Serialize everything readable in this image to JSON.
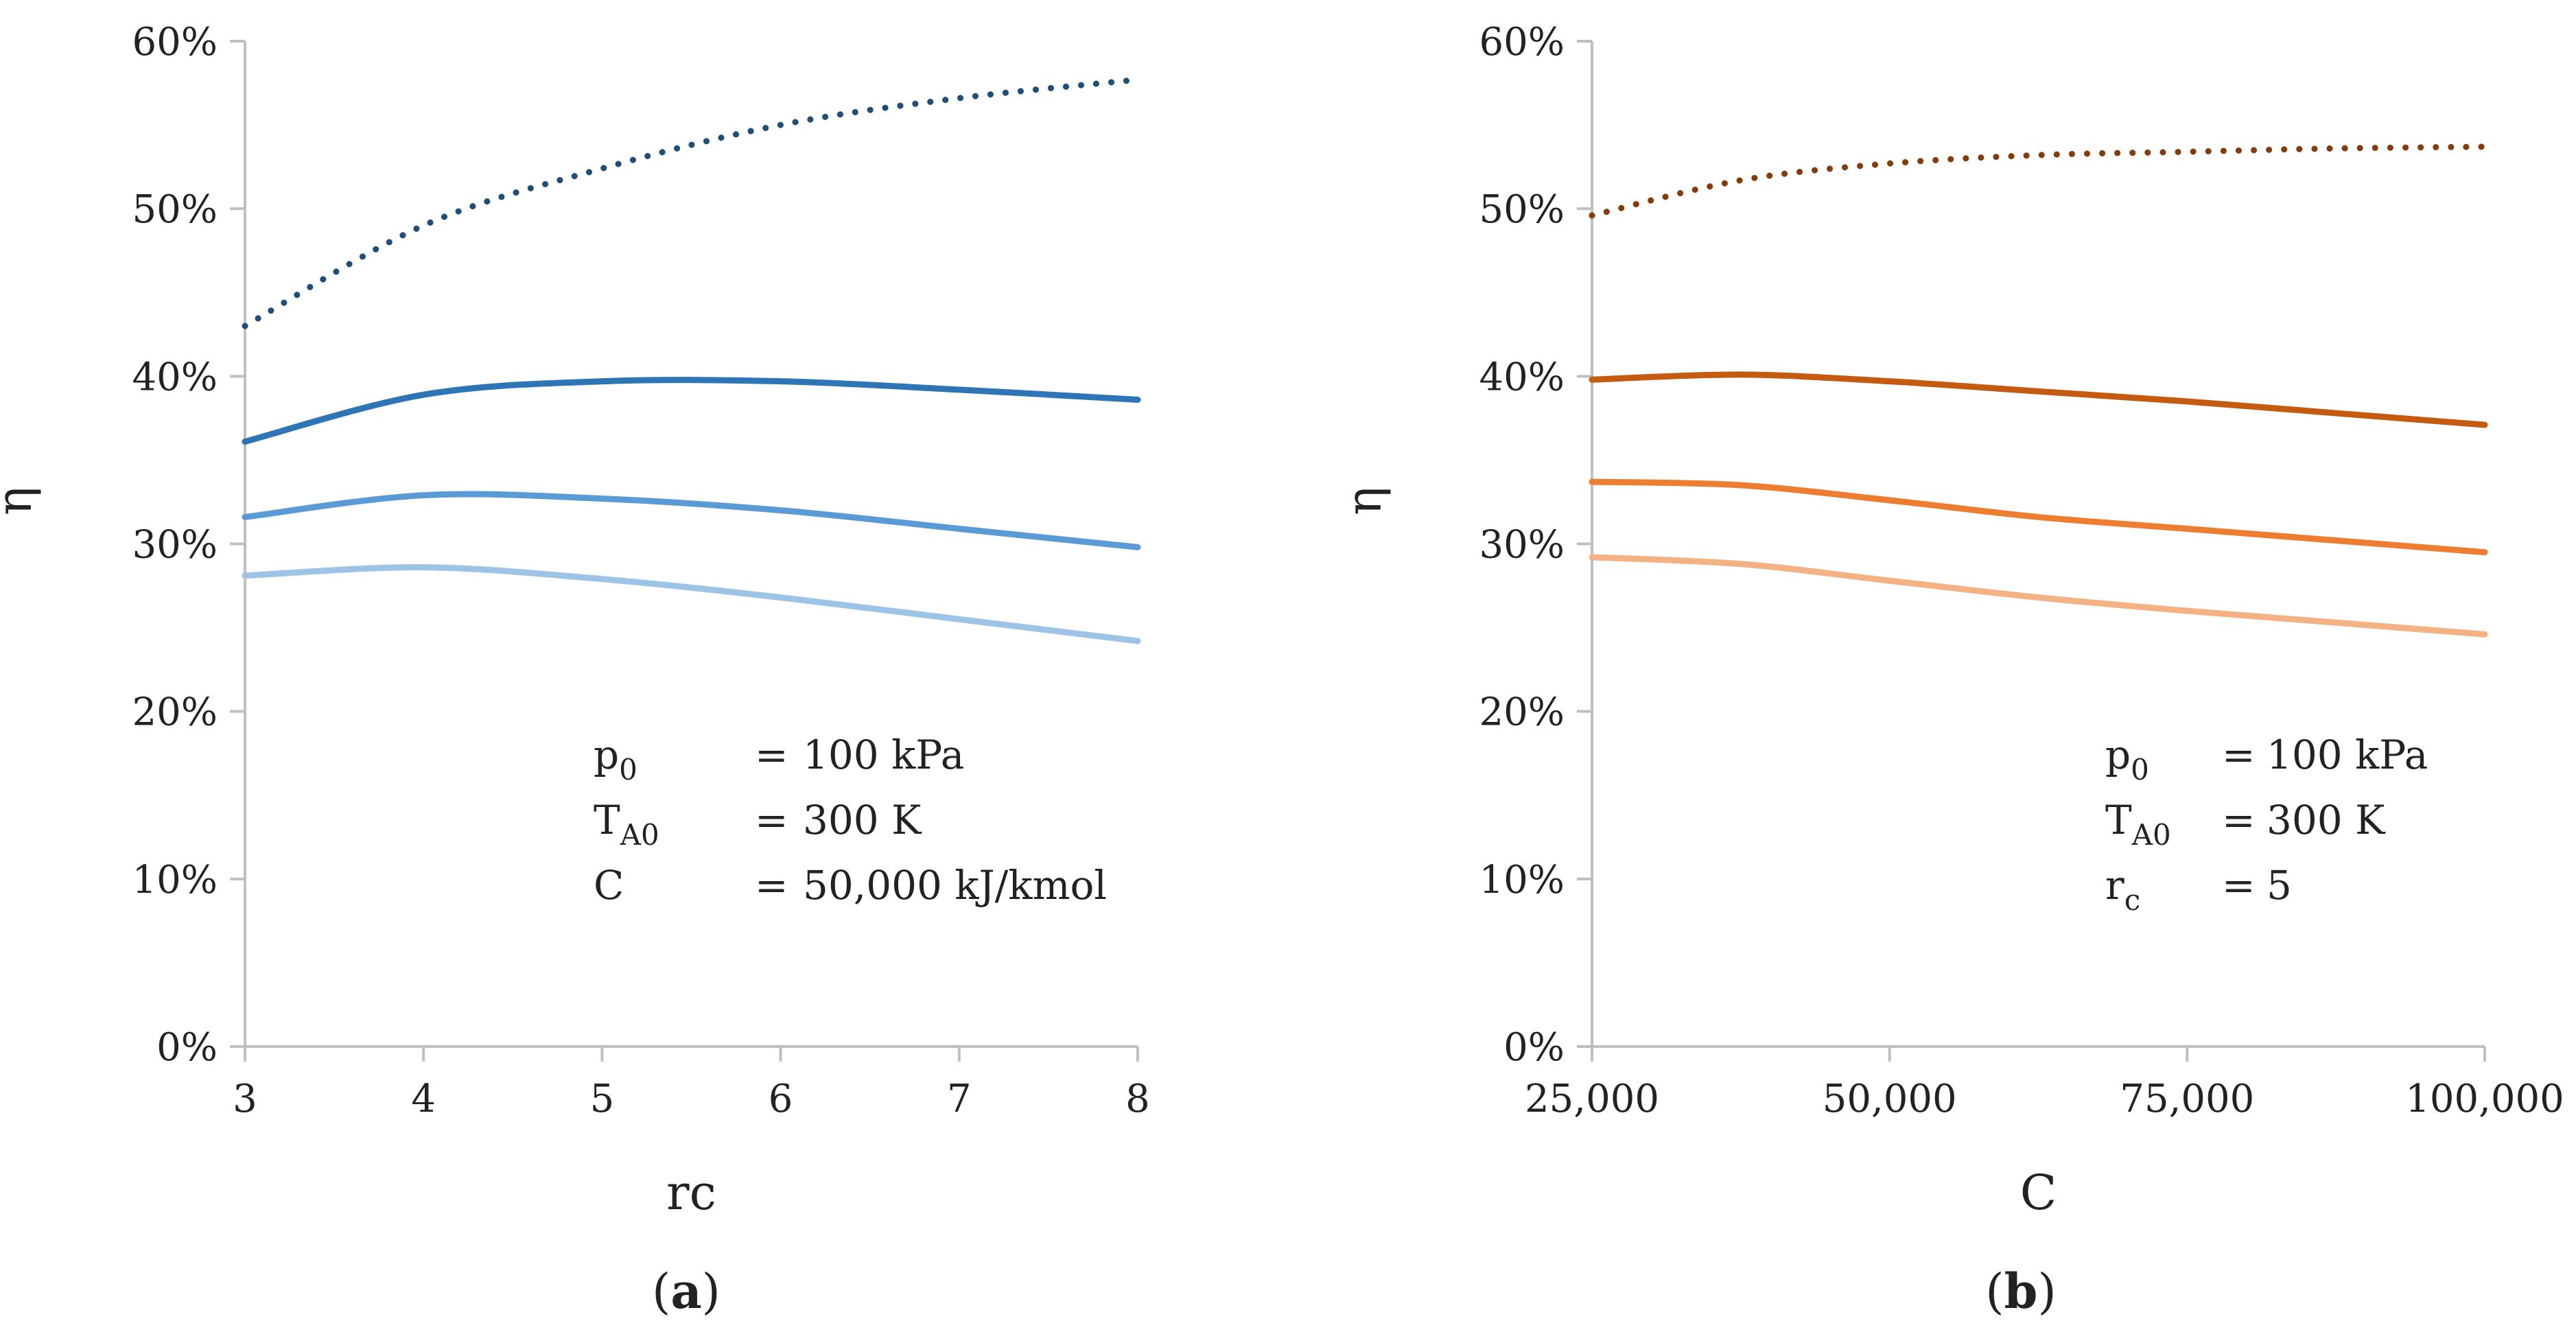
{
  "chart_data": [
    {
      "type": "line",
      "panel_label": "a",
      "xlabel": "rc",
      "ylabel": "η",
      "xlim": [
        3,
        8
      ],
      "ylim": [
        0,
        60
      ],
      "x_ticks": [
        "3",
        "4",
        "5",
        "6",
        "7",
        "8"
      ],
      "y_ticks": [
        "0%",
        "10%",
        "20%",
        "30%",
        "40%",
        "50%",
        "60%"
      ],
      "grid": false,
      "legend": "none",
      "annotation": {
        "lines": [
          {
            "sym": "p",
            "sub": "0",
            "eq": "=",
            "val": "100 kPa"
          },
          {
            "sym": "T",
            "sub": "A0",
            "eq": "=",
            "val": "300 K"
          },
          {
            "sym": "C",
            "sub": "",
            "eq": "=",
            "val": "50,000 kJ/kmol"
          }
        ]
      },
      "series": [
        {
          "name": "dotted",
          "style": "dotted",
          "color": "#1f4e79",
          "x": [
            3,
            4,
            5,
            6,
            7,
            8
          ],
          "y": [
            43.0,
            49.0,
            52.4,
            55.0,
            56.6,
            57.7
          ]
        },
        {
          "name": "solid-dark",
          "style": "solid",
          "color": "#2e75b6",
          "x": [
            3,
            4,
            5,
            6,
            7,
            8
          ],
          "y": [
            36.1,
            38.9,
            39.7,
            39.7,
            39.2,
            38.6
          ]
        },
        {
          "name": "solid-medium",
          "style": "solid",
          "color": "#5b9bd5",
          "x": [
            3,
            4,
            5,
            6,
            7,
            8
          ],
          "y": [
            31.6,
            32.9,
            32.7,
            32.0,
            30.9,
            29.8
          ]
        },
        {
          "name": "solid-light",
          "style": "solid",
          "color": "#9dc3e6",
          "x": [
            3,
            4,
            5,
            6,
            7,
            8
          ],
          "y": [
            28.1,
            28.6,
            27.9,
            26.8,
            25.5,
            24.2
          ]
        }
      ]
    },
    {
      "type": "line",
      "panel_label": "b",
      "xlabel": "C",
      "ylabel": "η",
      "xlim": [
        25000,
        100000
      ],
      "ylim": [
        0,
        60
      ],
      "x_ticks": [
        "25,000",
        "50,000",
        "75,000",
        "100,000"
      ],
      "y_ticks": [
        "0%",
        "10%",
        "20%",
        "30%",
        "40%",
        "50%",
        "60%"
      ],
      "grid": false,
      "legend": "none",
      "annotation": {
        "lines": [
          {
            "sym": "p",
            "sub": "0",
            "eq": "=",
            "val": "100 kPa"
          },
          {
            "sym": "T",
            "sub": "A0",
            "eq": "=",
            "val": "300 K"
          },
          {
            "sym": "r",
            "sub": "c",
            "eq": "=",
            "val": "5"
          }
        ]
      },
      "series": [
        {
          "name": "dotted",
          "style": "dotted",
          "color": "#843c0c",
          "x": [
            25000,
            37500,
            50000,
            62500,
            75000,
            87500,
            100000
          ],
          "y": [
            49.6,
            51.7,
            52.7,
            53.2,
            53.4,
            53.6,
            53.7
          ]
        },
        {
          "name": "solid-dark",
          "style": "solid",
          "color": "#c55a11",
          "x": [
            25000,
            37500,
            50000,
            62500,
            75000,
            87500,
            100000
          ],
          "y": [
            39.8,
            40.1,
            39.7,
            39.1,
            38.5,
            37.8,
            37.1
          ]
        },
        {
          "name": "solid-medium",
          "style": "solid",
          "color": "#ed7d31",
          "x": [
            25000,
            37500,
            50000,
            62500,
            75000,
            87500,
            100000
          ],
          "y": [
            33.7,
            33.5,
            32.6,
            31.6,
            30.9,
            30.2,
            29.5
          ]
        },
        {
          "name": "solid-light",
          "style": "solid",
          "color": "#f4b183",
          "x": [
            25000,
            37500,
            50000,
            62500,
            75000,
            87500,
            100000
          ],
          "y": [
            29.2,
            28.8,
            27.8,
            26.8,
            26.0,
            25.3,
            24.6
          ]
        }
      ]
    }
  ]
}
